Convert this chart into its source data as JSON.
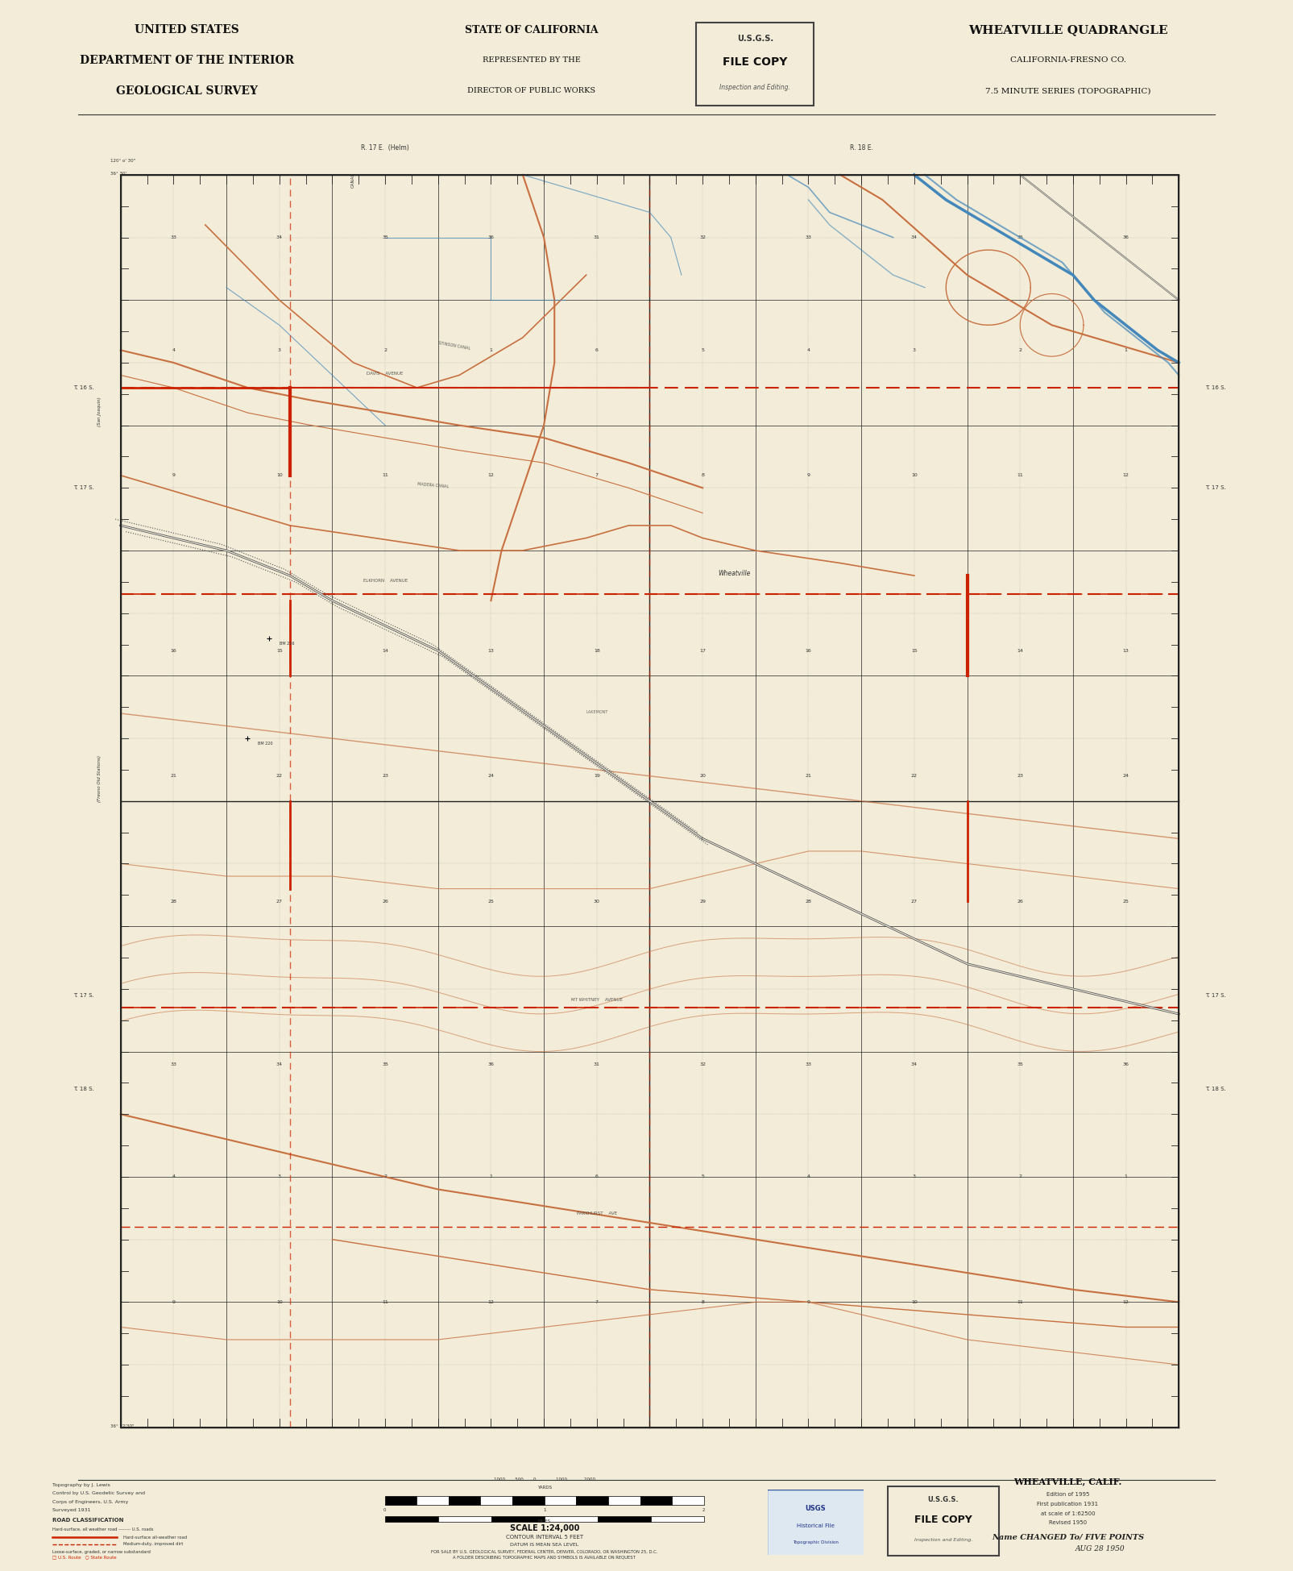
{
  "background_color": "#f2ecd8",
  "map_bg_color": "#f5f0e2",
  "title_left_line1": "UNITED STATES",
  "title_left_line2": "DEPARTMENT OF THE INTERIOR",
  "title_left_line3": "GEOLOGICAL SURVEY",
  "title_center_line1": "STATE OF CALIFORNIA",
  "title_center_line2": "REPRESENTED BY THE",
  "title_center_line3": "DIRECTOR OF PUBLIC WORKS",
  "title_right_line1": "WHEATVILLE QUADRANGLE",
  "title_right_line2": "CALIFORNIA-FRESNO CO.",
  "title_right_line3": "7.5 MINUTE SERIES (TOPOGRAPHIC)",
  "stamp_line1": "U.S.G.S.",
  "stamp_line2": "FILE COPY",
  "stamp_line3": "Inspection and Editing.",
  "bottom_right_line1": "WHEATVILLE, CALIF.",
  "bottom_right_line2": "Edition of 1995",
  "bottom_right_line3": "First publication 1931",
  "bottom_right_line4": "at scale of 1:62500",
  "bottom_right_line5": "Revised 1950",
  "handwritten_text": "Name CHANGED To/ FIVE POINTS",
  "handwritten_date": "AUG 28 1950",
  "scale_text": "SCALE 1:24,000",
  "contour_text": "CONTOUR INTERVAL 5 FEET",
  "datum_text": "DATUM IS MEAN SEA LEVEL",
  "grid_color": "#222222",
  "road_color": "#cc2200",
  "canal_color": "#4488bb",
  "wash_color": "#c87040",
  "railroad_color": "#555555",
  "township_dash_color": "#cc2200",
  "label_color": "#333333",
  "fig_width": 15.85,
  "fig_height": 19.29
}
